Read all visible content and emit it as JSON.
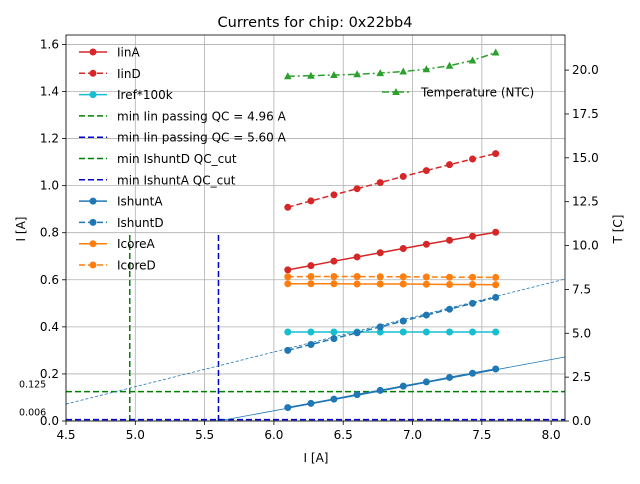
{
  "chart_data": {
    "type": "line",
    "title": "Currents for chip: 0x22bb4",
    "xlabel": "I [A]",
    "ylabel": "I [A]",
    "y2label": "T [C]",
    "xlim": [
      4.5,
      8.1
    ],
    "ylim": [
      0.0,
      1.64
    ],
    "y2lim": [
      0.0,
      22.0
    ],
    "grid": true,
    "legend_placement": "upper-left",
    "xticks": [
      "4.5",
      "5.0",
      "5.5",
      "6.0",
      "6.5",
      "7.0",
      "7.5",
      "8.0"
    ],
    "yticks": [
      "0.0",
      "0.2",
      "0.4",
      "0.6",
      "0.8",
      "1.0",
      "1.2",
      "1.4",
      "1.6"
    ],
    "y2ticks": [
      "0.0",
      "2.5",
      "5.0",
      "7.5",
      "10.0",
      "12.5",
      "15.0",
      "17.5",
      "20.0"
    ],
    "x": [
      6.1,
      6.267,
      6.433,
      6.6,
      6.767,
      6.933,
      7.1,
      7.267,
      7.433,
      7.6
    ],
    "series": [
      {
        "name": "IinA",
        "axis": "left",
        "color": "#d62728",
        "dash": "solid",
        "marker": "circle",
        "values": [
          0.642,
          0.66,
          0.679,
          0.697,
          0.715,
          0.733,
          0.751,
          0.768,
          0.785,
          0.802
        ]
      },
      {
        "name": "IinD",
        "axis": "left",
        "color": "#d62728",
        "dash": "dashed",
        "marker": "circle",
        "values": [
          0.908,
          0.935,
          0.961,
          0.987,
          1.013,
          1.039,
          1.064,
          1.089,
          1.113,
          1.136
        ]
      },
      {
        "name": "Iref*100k",
        "axis": "left",
        "color": "#17becf",
        "dash": "solid",
        "marker": "circle",
        "values": [
          0.378,
          0.378,
          0.378,
          0.378,
          0.378,
          0.378,
          0.378,
          0.378,
          0.378,
          0.378
        ]
      },
      {
        "name": "IshuntA",
        "axis": "left",
        "color": "#1f77b4",
        "dash": "solid",
        "marker": "circle",
        "values": [
          0.057,
          0.075,
          0.093,
          0.112,
          0.13,
          0.148,
          0.166,
          0.185,
          0.203,
          0.221
        ]
      },
      {
        "name": "IshuntD",
        "axis": "left",
        "color": "#1f77b4",
        "dash": "dashed",
        "marker": "circle",
        "values": [
          0.3,
          0.325,
          0.35,
          0.375,
          0.4,
          0.425,
          0.45,
          0.475,
          0.5,
          0.525
        ]
      },
      {
        "name": "IcoreA",
        "axis": "left",
        "color": "#ff7f0e",
        "dash": "solid",
        "marker": "circle",
        "values": [
          0.583,
          0.583,
          0.583,
          0.582,
          0.582,
          0.582,
          0.581,
          0.58,
          0.58,
          0.579
        ]
      },
      {
        "name": "IcoreD",
        "axis": "left",
        "color": "#ff7f0e",
        "dash": "dashed",
        "marker": "circle",
        "values": [
          0.613,
          0.614,
          0.614,
          0.614,
          0.613,
          0.613,
          0.612,
          0.611,
          0.611,
          0.61
        ]
      },
      {
        "name": "Temperature (NTC)",
        "axis": "right",
        "color": "#2ca02c",
        "dash": "dashdot",
        "marker": "triangle",
        "values": [
          19.65,
          19.68,
          19.72,
          19.76,
          19.83,
          19.92,
          20.05,
          20.25,
          20.55,
          21.0
        ]
      }
    ],
    "fit_lines": [
      {
        "series": "IshuntA",
        "color": "#1f77b4",
        "dash": "solid",
        "x": [
          5.6,
          8.1
        ],
        "values": [
          0.0,
          0.272
        ]
      },
      {
        "series": "IshuntD",
        "color": "#1f77b4",
        "dash": "dashed",
        "x": [
          4.5,
          8.1
        ],
        "values": [
          0.072,
          0.603
        ]
      }
    ],
    "reference_lines": [
      {
        "name": "min Iin passing QC = 4.96 A",
        "orientation": "vertical",
        "value": 4.96,
        "ymax": 0.8,
        "color": "#008000"
      },
      {
        "name": "min Iin passing QC = 5.60 A",
        "orientation": "vertical",
        "value": 5.6,
        "ymax": 0.8,
        "color": "#0000cd"
      },
      {
        "name": "min IshuntD QC_cut",
        "orientation": "horizontal",
        "value": 0.125,
        "color": "#008000"
      },
      {
        "name": "min IshuntA QC_cut",
        "orientation": "horizontal",
        "value": 0.006,
        "color": "#0000cd"
      }
    ],
    "annotations": [
      {
        "text": "0.125",
        "y": 0.125
      },
      {
        "text": "0.006",
        "y": 0.006
      }
    ],
    "legend_entries": [
      {
        "label": "IinA",
        "color": "#d62728",
        "dash": "solid",
        "marker": "circle"
      },
      {
        "label": "IinD",
        "color": "#d62728",
        "dash": "dashed",
        "marker": "circle"
      },
      {
        "label": "Iref*100k",
        "color": "#17becf",
        "dash": "solid",
        "marker": "circle"
      },
      {
        "label": "min Iin passing QC = 4.96 A",
        "color": "#008000",
        "dash": "dashed",
        "marker": "none"
      },
      {
        "label": "min Iin passing QC = 5.60 A",
        "color": "#0000cd",
        "dash": "dashed",
        "marker": "none"
      },
      {
        "label": "min IshuntD QC_cut",
        "color": "#008000",
        "dash": "dashed",
        "marker": "none"
      },
      {
        "label": "min IshuntA QC_cut",
        "color": "#0000cd",
        "dash": "dashed",
        "marker": "none"
      },
      {
        "label": "IshuntA",
        "color": "#1f77b4",
        "dash": "solid",
        "marker": "circle"
      },
      {
        "label": "IshuntD",
        "color": "#1f77b4",
        "dash": "dashed",
        "marker": "circle"
      },
      {
        "label": "IcoreA",
        "color": "#ff7f0e",
        "dash": "solid",
        "marker": "circle"
      },
      {
        "label": "IcoreD",
        "color": "#ff7f0e",
        "dash": "dashed",
        "marker": "circle"
      }
    ],
    "legend2_entries": [
      {
        "label": "Temperature (NTC)",
        "color": "#2ca02c",
        "dash": "dashdot",
        "marker": "triangle"
      }
    ]
  }
}
